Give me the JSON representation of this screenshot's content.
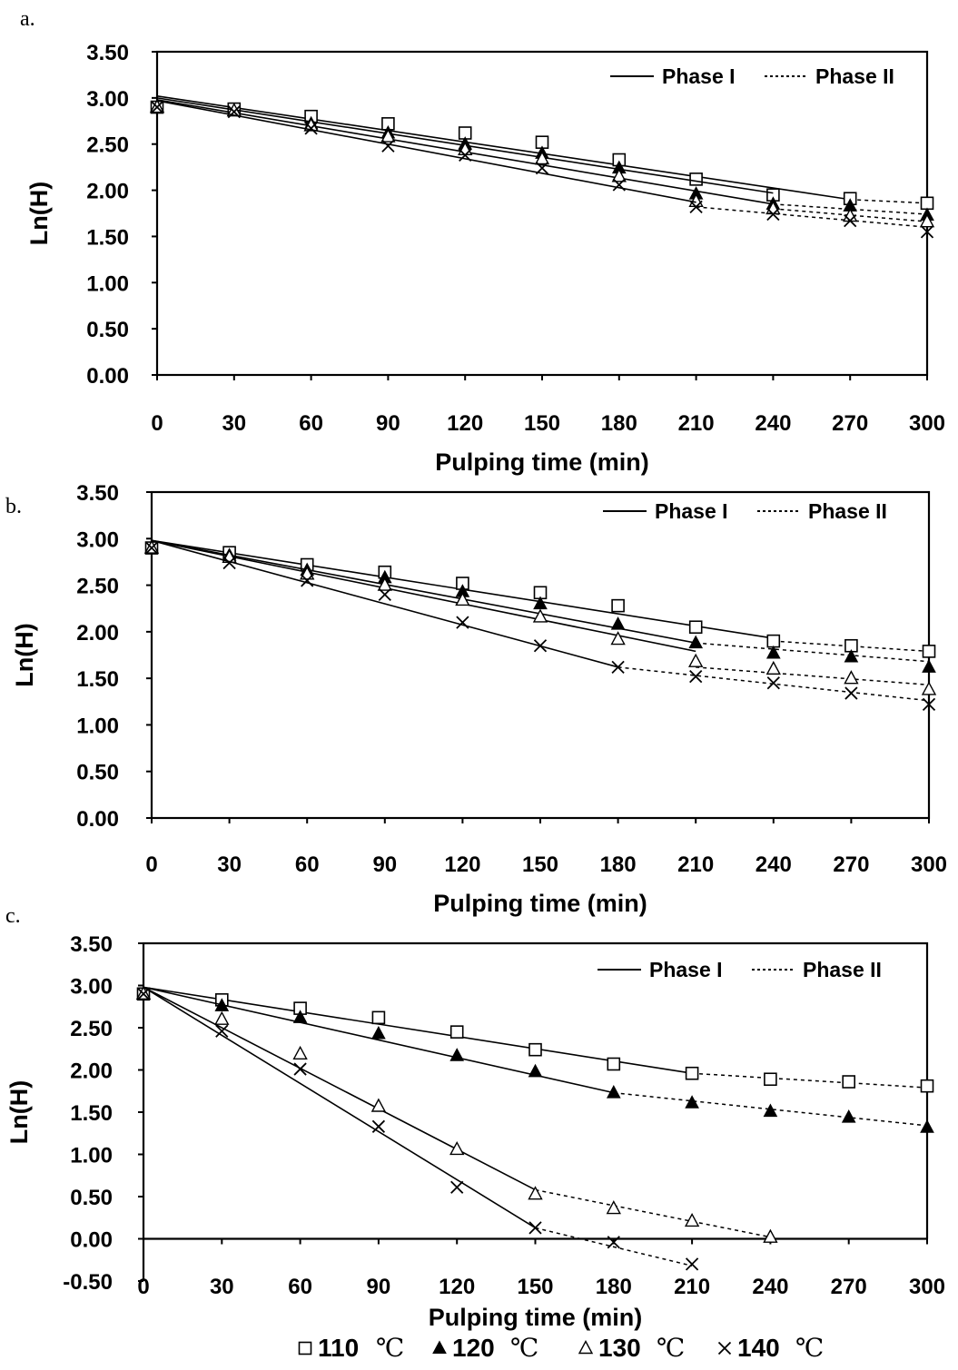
{
  "chart_data": [
    {
      "type": "line",
      "panel_label": "a.",
      "xlabel": "Pulping time (min)",
      "ylabel": "Ln(H)",
      "xlim": [
        0,
        300
      ],
      "ylim": [
        0,
        3.5
      ],
      "x_ticks": [
        "0",
        "30",
        "60",
        "90",
        "120",
        "150",
        "180",
        "210",
        "240",
        "270",
        "300"
      ],
      "y_ticks": [
        "0.00",
        "0.50",
        "1.00",
        "1.50",
        "2.00",
        "2.50",
        "3.00",
        "3.50"
      ],
      "legend": {
        "phase1": "Phase I",
        "phase2": "Phase II",
        "position": "top-right"
      },
      "grid": false,
      "series": [
        {
          "name": "110 ℃",
          "marker": "square-open",
          "x": [
            0,
            30,
            60,
            90,
            120,
            150,
            180,
            210,
            240,
            270,
            300
          ],
          "y": [
            2.9,
            2.88,
            2.8,
            2.72,
            2.62,
            2.52,
            2.33,
            2.12,
            1.95,
            1.91,
            1.86
          ],
          "phase1": [
            [
              0,
              3.02
            ],
            [
              270,
              1.9
            ]
          ],
          "phase2": [
            [
              270,
              1.9
            ],
            [
              300,
              1.86
            ]
          ]
        },
        {
          "name": "120 ℃",
          "marker": "triangle-filled",
          "x": [
            0,
            30,
            60,
            90,
            120,
            150,
            180,
            210,
            240,
            270,
            300
          ],
          "y": [
            2.9,
            2.86,
            2.72,
            2.62,
            2.5,
            2.4,
            2.24,
            1.96,
            1.85,
            1.83,
            1.73
          ],
          "phase1": [
            [
              0,
              3.0
            ],
            [
              240,
              1.97
            ]
          ],
          "phase2": [
            [
              240,
              1.85
            ],
            [
              300,
              1.74
            ]
          ]
        },
        {
          "name": "130 ℃",
          "marker": "triangle-open",
          "x": [
            0,
            30,
            60,
            90,
            120,
            150,
            180,
            210,
            240,
            270,
            300
          ],
          "y": [
            2.9,
            2.86,
            2.7,
            2.58,
            2.44,
            2.34,
            2.15,
            1.88,
            1.8,
            1.72,
            1.66
          ],
          "phase1": [
            [
              0,
              2.98
            ],
            [
              240,
              1.85
            ]
          ],
          "phase2": [
            [
              240,
              1.8
            ],
            [
              300,
              1.66
            ]
          ]
        },
        {
          "name": "140 ℃",
          "marker": "x",
          "x": [
            0,
            30,
            60,
            90,
            120,
            150,
            180,
            210,
            240,
            270,
            300
          ],
          "y": [
            2.9,
            2.85,
            2.67,
            2.48,
            2.38,
            2.24,
            2.06,
            1.82,
            1.74,
            1.67,
            1.55
          ],
          "phase1": [
            [
              0,
              2.97
            ],
            [
              210,
              1.87
            ]
          ],
          "phase2": [
            [
              210,
              1.82
            ],
            [
              300,
              1.6
            ]
          ]
        }
      ]
    },
    {
      "type": "line",
      "panel_label": "b.",
      "xlabel": "Pulping time (min)",
      "ylabel": "Ln(H)",
      "xlim": [
        0,
        300
      ],
      "ylim": [
        0,
        3.5
      ],
      "x_ticks": [
        "0",
        "30",
        "60",
        "90",
        "120",
        "150",
        "180",
        "210",
        "240",
        "270",
        "300"
      ],
      "y_ticks": [
        "0.00",
        "0.50",
        "1.00",
        "1.50",
        "2.00",
        "2.50",
        "3.00",
        "3.50"
      ],
      "legend": {
        "phase1": "Phase I",
        "phase2": "Phase II",
        "position": "top-right"
      },
      "grid": false,
      "series": [
        {
          "name": "110 ℃",
          "marker": "square-open",
          "x": [
            0,
            30,
            60,
            90,
            120,
            150,
            180,
            210,
            240,
            270,
            300
          ],
          "y": [
            2.9,
            2.85,
            2.72,
            2.64,
            2.52,
            2.42,
            2.28,
            2.05,
            1.9,
            1.85,
            1.79
          ],
          "phase1": [
            [
              0,
              2.98
            ],
            [
              240,
              1.93
            ]
          ],
          "phase2": [
            [
              240,
              1.9
            ],
            [
              300,
              1.79
            ]
          ]
        },
        {
          "name": "120 ℃",
          "marker": "triangle-filled",
          "x": [
            0,
            30,
            60,
            90,
            120,
            150,
            180,
            210,
            240,
            270,
            300
          ],
          "y": [
            2.9,
            2.82,
            2.66,
            2.58,
            2.43,
            2.3,
            2.08,
            1.88,
            1.77,
            1.73,
            1.62
          ],
          "phase1": [
            [
              0,
              2.98
            ],
            [
              210,
              1.88
            ]
          ],
          "phase2": [
            [
              210,
              1.88
            ],
            [
              300,
              1.68
            ]
          ]
        },
        {
          "name": "130 ℃",
          "marker": "triangle-open",
          "x": [
            0,
            30,
            60,
            90,
            120,
            150,
            180,
            210,
            240,
            270,
            300
          ],
          "y": [
            2.9,
            2.8,
            2.62,
            2.5,
            2.34,
            2.16,
            1.92,
            1.68,
            1.6,
            1.5,
            1.38
          ],
          "phase1": [
            [
              0,
              2.98
            ],
            [
              210,
              1.79
            ]
          ],
          "phase2": [
            [
              210,
              1.62
            ],
            [
              300,
              1.43
            ]
          ]
        },
        {
          "name": "140 ℃",
          "marker": "x",
          "x": [
            0,
            30,
            60,
            90,
            120,
            150,
            180,
            210,
            240,
            270,
            300
          ],
          "y": [
            2.9,
            2.74,
            2.55,
            2.4,
            2.1,
            1.85,
            1.62,
            1.52,
            1.45,
            1.34,
            1.22
          ],
          "phase1": [
            [
              0,
              2.98
            ],
            [
              180,
              1.62
            ]
          ],
          "phase2": [
            [
              180,
              1.62
            ],
            [
              300,
              1.26
            ]
          ]
        }
      ]
    },
    {
      "type": "line",
      "panel_label": "c.",
      "xlabel": "Pulping time (min)",
      "ylabel": "Ln(H)",
      "xlim": [
        0,
        300
      ],
      "ylim": [
        -0.5,
        3.5
      ],
      "x_ticks": [
        "0",
        "30",
        "60",
        "90",
        "120",
        "150",
        "180",
        "210",
        "240",
        "270",
        "300"
      ],
      "y_ticks": [
        "-0.50",
        "0.00",
        "0.50",
        "1.00",
        "1.50",
        "2.00",
        "2.50",
        "3.00",
        "3.50"
      ],
      "legend": {
        "phase1": "Phase I",
        "phase2": "Phase II",
        "position": "top-right"
      },
      "grid": false,
      "series": [
        {
          "name": "110 ℃",
          "marker": "square-open",
          "x": [
            0,
            30,
            60,
            90,
            120,
            150,
            180,
            210,
            240,
            270,
            300
          ],
          "y": [
            2.9,
            2.83,
            2.73,
            2.62,
            2.45,
            2.24,
            2.07,
            1.96,
            1.89,
            1.86,
            1.81
          ],
          "phase1": [
            [
              0,
              2.98
            ],
            [
              210,
              1.96
            ]
          ],
          "phase2": [
            [
              210,
              1.96
            ],
            [
              300,
              1.79
            ]
          ]
        },
        {
          "name": "120 ℃",
          "marker": "triangle-filled",
          "x": [
            0,
            30,
            60,
            90,
            120,
            150,
            180,
            210,
            240,
            270,
            300
          ],
          "y": [
            2.9,
            2.76,
            2.62,
            2.43,
            2.17,
            1.98,
            1.73,
            1.61,
            1.51,
            1.44,
            1.32
          ],
          "phase1": [
            [
              0,
              2.98
            ],
            [
              180,
              1.73
            ]
          ],
          "phase2": [
            [
              180,
              1.73
            ],
            [
              300,
              1.34
            ]
          ]
        },
        {
          "name": "130 ℃",
          "marker": "triangle-open",
          "x": [
            0,
            30,
            60,
            90,
            120,
            150,
            180,
            210,
            240
          ],
          "y": [
            2.9,
            2.6,
            2.19,
            1.57,
            1.06,
            0.53,
            0.36,
            0.21,
            0.02
          ],
          "phase1": [
            [
              0,
              2.98
            ],
            [
              150,
              0.58
            ]
          ],
          "phase2": [
            [
              150,
              0.58
            ],
            [
              240,
              0.02
            ]
          ]
        },
        {
          "name": "140 ℃",
          "marker": "x",
          "x": [
            0,
            30,
            60,
            90,
            120,
            150,
            180,
            210
          ],
          "y": [
            2.9,
            2.46,
            2.01,
            1.33,
            0.61,
            0.13,
            -0.04,
            -0.3
          ],
          "phase1": [
            [
              0,
              2.98
            ],
            [
              150,
              0.13
            ]
          ],
          "phase2": [
            [
              150,
              0.13
            ],
            [
              210,
              -0.32
            ]
          ]
        }
      ]
    }
  ],
  "bottom_legend": [
    {
      "label": "110",
      "unit": "℃",
      "marker": "square-open"
    },
    {
      "label": "120",
      "unit": "℃",
      "marker": "triangle-filled"
    },
    {
      "label": "130",
      "unit": "℃",
      "marker": "triangle-open"
    },
    {
      "label": "140",
      "unit": "℃",
      "marker": "x"
    }
  ]
}
